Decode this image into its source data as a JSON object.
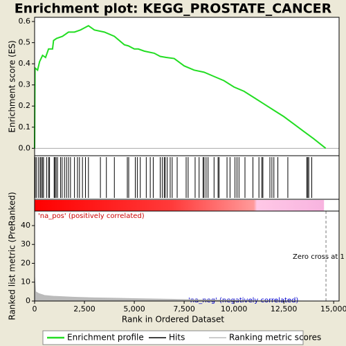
{
  "chart_data": {
    "type": "enrichment",
    "title": "Enrichment plot: KEGG_PROSTATE_CANCER",
    "x_label": "Rank in Ordered Dataset",
    "xlim": [
      0,
      15270
    ],
    "xticks": [
      0,
      {
        "value": 2500,
        "label": "2,500"
      },
      {
        "value": 5000,
        "label": "5,000"
      },
      {
        "value": 7500,
        "label": "7,500"
      },
      {
        "value": 10000,
        "label": "10,000"
      },
      {
        "value": 12500,
        "label": "12,500"
      },
      {
        "value": 15000,
        "label": "15,000"
      }
    ],
    "es_label": "Enrichment score (ES)",
    "es_ylim": [
      -0.035,
      0.62
    ],
    "es_yticks": [
      {
        "value": 0,
        "label": "0.0"
      },
      0.1,
      0.2,
      0.3,
      0.4,
      0.5,
      0.6
    ],
    "metric_label": "Ranked list metric (PreRanked)",
    "metric_ylim": [
      0,
      47.7
    ],
    "metric_yticks": [
      0,
      10,
      20,
      30,
      40
    ],
    "pos_label": "'na_pos' (positively correlated)",
    "neg_label": "'na_neg' (negatively correlated)",
    "zero_cross_label": "Zero cross at 1",
    "zero_cross": 14613,
    "series": [
      {
        "name": "Enrichment profile",
        "color": "#22dd22",
        "x": [
          0,
          20,
          150,
          250,
          400,
          550,
          700,
          900,
          950,
          1100,
          1400,
          1700,
          2000,
          2300,
          2500,
          2700,
          3000,
          3500,
          4000,
          4500,
          4700,
          5000,
          5200,
          5500,
          6000,
          6300,
          6600,
          7000,
          7500,
          8000,
          8500,
          9000,
          9500,
          10000,
          10500,
          11000,
          11500,
          12000,
          12500,
          13000,
          13500,
          14000,
          14600
        ],
        "values": [
          0,
          0.38,
          0.37,
          0.41,
          0.44,
          0.43,
          0.47,
          0.47,
          0.51,
          0.52,
          0.53,
          0.55,
          0.55,
          0.56,
          0.57,
          0.58,
          0.56,
          0.55,
          0.53,
          0.49,
          0.485,
          0.47,
          0.47,
          0.46,
          0.45,
          0.435,
          0.43,
          0.425,
          0.39,
          0.37,
          0.36,
          0.34,
          0.32,
          0.29,
          0.27,
          0.24,
          0.21,
          0.18,
          0.15,
          0.115,
          0.08,
          0.045,
          0
        ]
      },
      {
        "name": "Hits",
        "color": "#000000",
        "x": [
          30,
          100,
          200,
          280,
          330,
          400,
          450,
          600,
          700,
          750,
          980,
          1020,
          1080,
          1150,
          1300,
          1380,
          1500,
          1600,
          1700,
          1800,
          2000,
          2150,
          2250,
          2400,
          2550,
          2700,
          3300,
          3600,
          4000,
          4650,
          4720,
          5050,
          5150,
          5300,
          5600,
          5800,
          5950,
          6300,
          6400,
          6500,
          6550,
          6650,
          6800,
          6900,
          7150,
          7600,
          7700,
          8050,
          8250,
          8450,
          8500,
          8600,
          8700,
          9000,
          9200,
          9250,
          9650,
          9800,
          10050,
          10150,
          10250,
          10550,
          10950,
          11250,
          11400,
          11450,
          11800,
          11900,
          12000,
          12200,
          12700,
          13650,
          13700,
          13750,
          13900
        ]
      },
      {
        "name": "Ranking metric scores",
        "color": "#bbbbbb",
        "x": [
          0,
          50,
          200,
          500,
          1000,
          2000,
          3000,
          4000,
          5000,
          6000,
          7000,
          8000,
          9000,
          10000,
          11000,
          12000,
          13000,
          14613
        ],
        "values": [
          13,
          5,
          4,
          3,
          2.5,
          2,
          1.7,
          1.5,
          1.3,
          1.1,
          0.9,
          0.7,
          0.5,
          0.35,
          0.2,
          0.1,
          0.05,
          0
        ]
      }
    ]
  }
}
